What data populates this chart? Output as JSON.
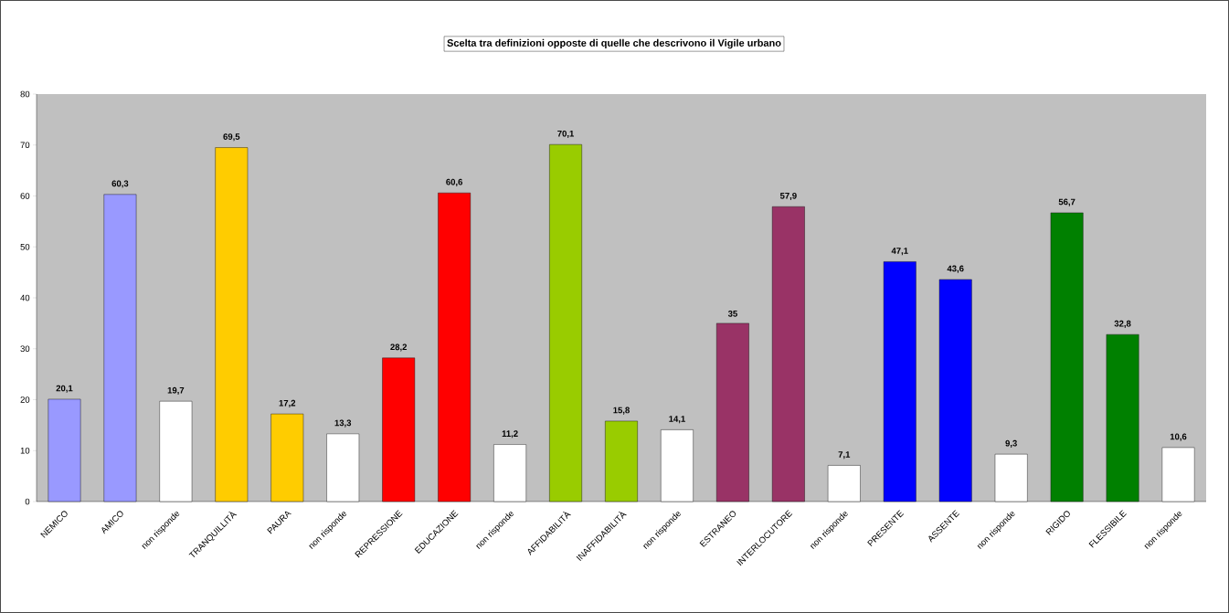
{
  "chart_data": {
    "type": "bar",
    "title": "Scelta tra definizioni opposte di quelle che descrivono il Vigile urbano",
    "categories": [
      "NEMICO",
      "AMICO",
      "non risponde",
      "TRANQUILLITÀ",
      "PAURA",
      "non risponde",
      "REPRESSIONE",
      "EDUCAZIONE",
      "non risponde",
      "AFFIDABILITÀ",
      "INAFFIDABILITÀ",
      "non risponde",
      "ESTRANEO",
      "INTERLOCUTORE",
      "non risponde",
      "PRESENTE",
      "ASSENTE",
      "non risponde",
      "RIGIDO",
      "FLESSIBILE",
      "non risponde"
    ],
    "values": [
      20.1,
      60.3,
      19.7,
      69.5,
      17.2,
      13.3,
      28.2,
      60.6,
      11.2,
      70.1,
      15.8,
      14.1,
      35,
      57.9,
      7.1,
      47.1,
      43.6,
      9.3,
      56.7,
      32.8,
      10.6
    ],
    "value_labels": [
      "20,1",
      "60,3",
      "19,7",
      "69,5",
      "17,2",
      "13,3",
      "28,2",
      "60,6",
      "11,2",
      "70,1",
      "15,8",
      "14,1",
      "35",
      "57,9",
      "7,1",
      "47,1",
      "43,6",
      "9,3",
      "56,7",
      "32,8",
      "10,6"
    ],
    "colors": [
      "#9999ff",
      "#9999ff",
      "#ffffff",
      "#ffcc00",
      "#ffcc00",
      "#ffffff",
      "#ff0000",
      "#ff0000",
      "#ffffff",
      "#99cc00",
      "#99cc00",
      "#ffffff",
      "#993366",
      "#993366",
      "#ffffff",
      "#0000ff",
      "#0000ff",
      "#ffffff",
      "#008000",
      "#008000",
      "#ffffff"
    ],
    "ylim": [
      0,
      80
    ],
    "yticks": [
      0,
      10,
      20,
      30,
      40,
      50,
      60,
      70,
      80
    ],
    "grid": false
  }
}
